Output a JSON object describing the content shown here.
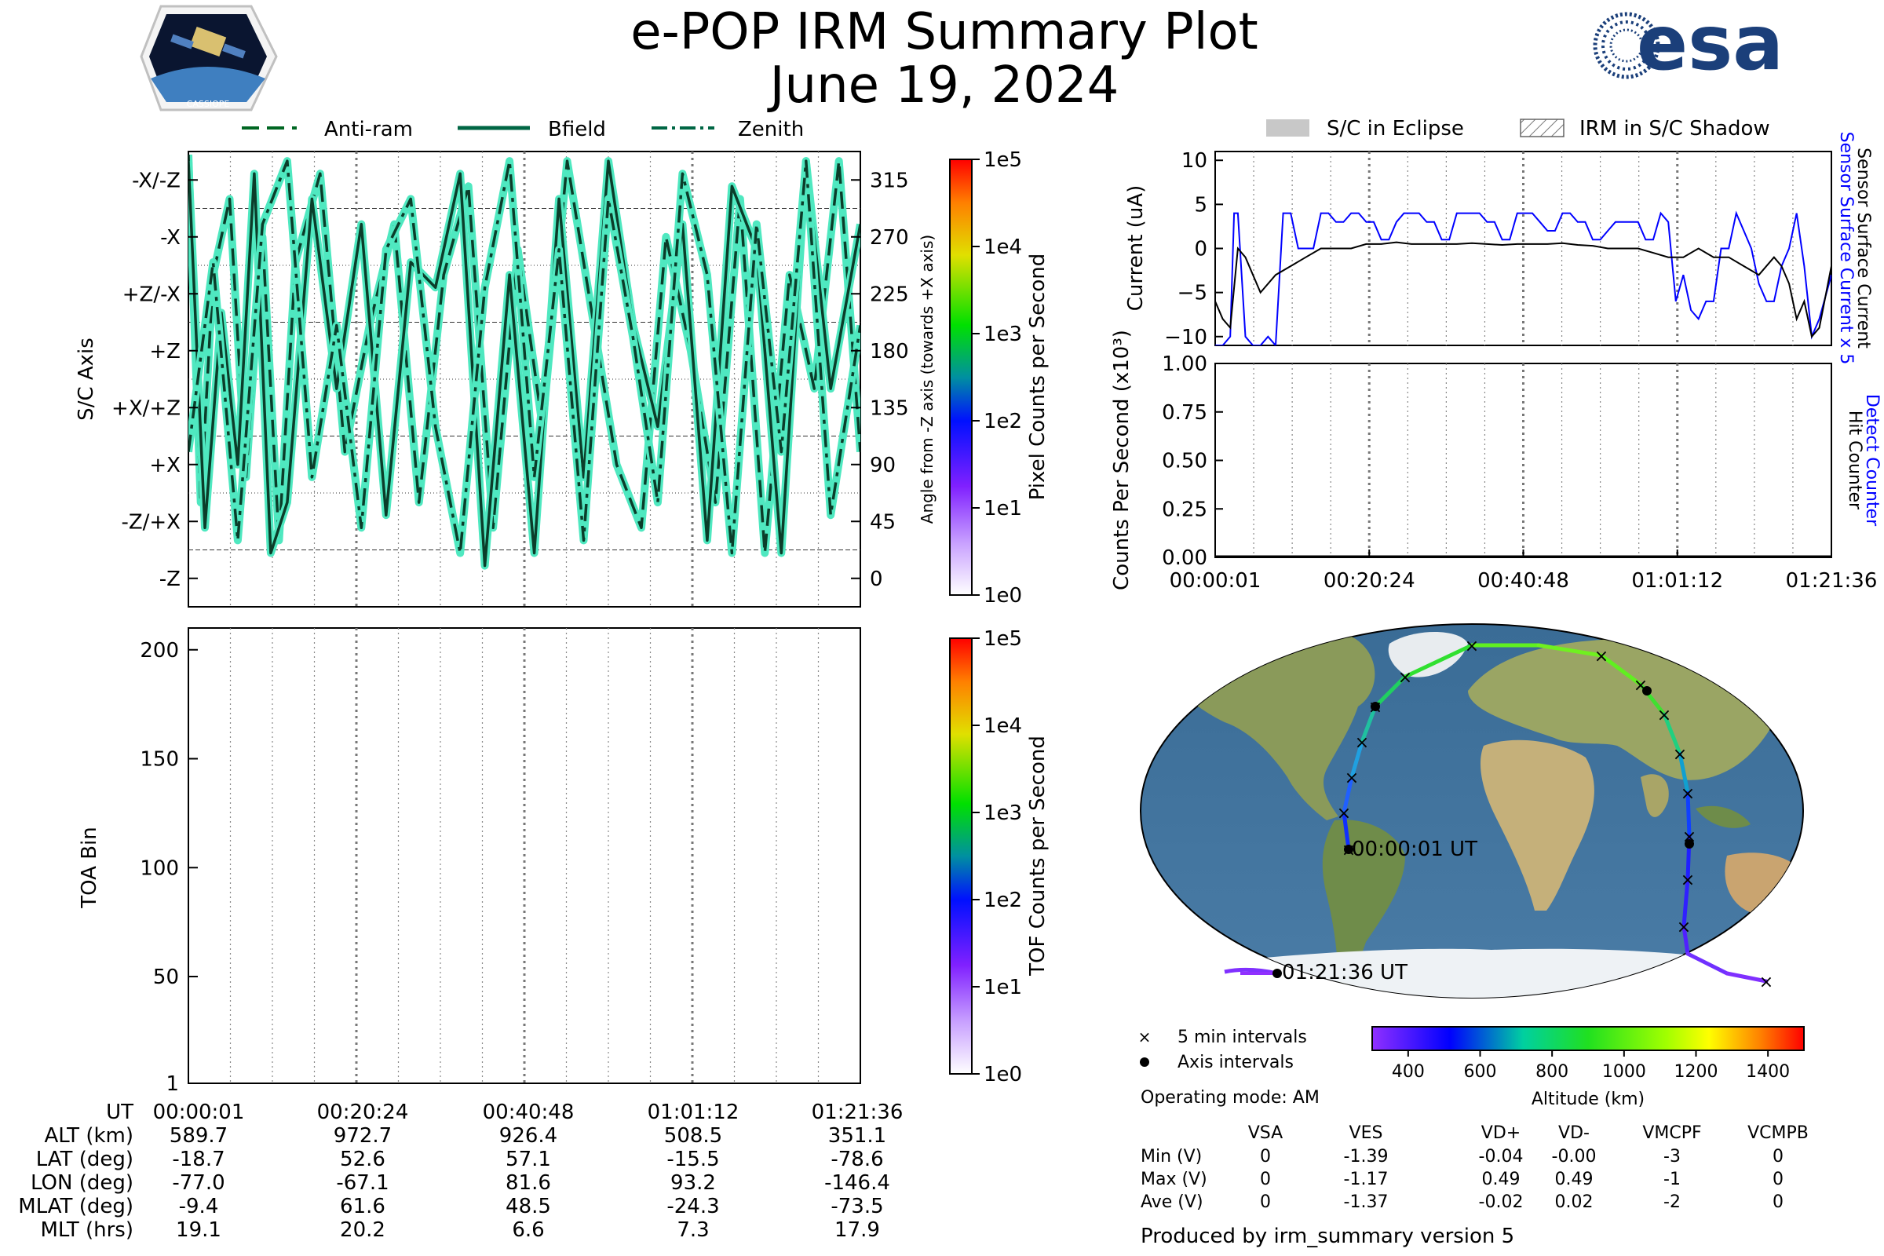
{
  "title": "e-POP IRM Summary Plot",
  "date": "June 19, 2024",
  "logo_left_text": "CASSIOPE",
  "logo_right_text": "esa",
  "legend_top": {
    "antiram": "Anti-ram",
    "bfield": "Bfield",
    "zenith": "Zenith"
  },
  "legend_right": {
    "eclipse": "S/C in Eclipse",
    "shadow": "IRM in S/C Shadow"
  },
  "chart_data": [
    {
      "type": "line",
      "title": "",
      "ylabel": "S/C Axis",
      "ylabel_right": "Angle from -Z axis (towards +X axis)",
      "colorbar_label": "Pixel Counts per Second",
      "colorbar_ticks": [
        "1e0",
        "1e1",
        "1e2",
        "1e3",
        "1e4",
        "1e5"
      ],
      "y_tick_labels": [
        "-Z",
        "-Z/+X",
        "+X",
        "+X/+Z",
        "+Z",
        "+Z/-X",
        "-X",
        "-X/-Z"
      ],
      "y_right_ticks": [
        "0",
        "45",
        "90",
        "135",
        "180",
        "225",
        "270",
        "315"
      ],
      "ylim": [
        -22.5,
        337.5
      ],
      "series": [
        {
          "name": "Anti-ram",
          "style": "dashed",
          "x": [
            0,
            1.5,
            3,
            5,
            7,
            9,
            11,
            13,
            16,
            19,
            22,
            25,
            28,
            31,
            34,
            37,
            40,
            43,
            46,
            49,
            52,
            55,
            58,
            61,
            64,
            67,
            70,
            73,
            76,
            79,
            81.6
          ],
          "values": [
            335,
            60,
            240,
            300,
            80,
            270,
            30,
            250,
            320,
            100,
            200,
            280,
            60,
            240,
            310,
            40,
            260,
            120,
            330,
            210,
            90,
            40,
            270,
            180,
            60,
            300,
            20,
            240,
            150,
            330,
            100
          ]
        },
        {
          "name": "Bfield",
          "style": "solid",
          "x": [
            0,
            2,
            4,
            6,
            8,
            10,
            12,
            15,
            18,
            21,
            24,
            27,
            30,
            33,
            36,
            39,
            42,
            45,
            48,
            51,
            54,
            57,
            60,
            63,
            66,
            69,
            72,
            75,
            78,
            81.6
          ],
          "values": [
            330,
            40,
            210,
            90,
            320,
            20,
            60,
            300,
            150,
            280,
            50,
            250,
            230,
            320,
            10,
            240,
            20,
            300,
            80,
            330,
            200,
            120,
            280,
            30,
            310,
            260,
            20,
            330,
            150,
            280
          ]
        },
        {
          "name": "Zenith",
          "style": "dashdot",
          "x": [
            0,
            3,
            6,
            9,
            12,
            15,
            18,
            21,
            24,
            27,
            30,
            33,
            36,
            39,
            42,
            45,
            48,
            51,
            54,
            57,
            60,
            63,
            66,
            69,
            72,
            75,
            78,
            81.6
          ],
          "values": [
            100,
            250,
            30,
            280,
            330,
            80,
            200,
            40,
            260,
            300,
            120,
            20,
            230,
            330,
            80,
            260,
            30,
            300,
            190,
            60,
            320,
            240,
            20,
            280,
            100,
            330,
            50,
            200
          ]
        }
      ]
    },
    {
      "type": "heatmap",
      "ylabel": "TOA Bin",
      "colorbar_label": "TOF Counts per Second",
      "colorbar_ticks": [
        "1e0",
        "1e1",
        "1e2",
        "1e3",
        "1e4",
        "1e5"
      ],
      "y_ticks": [
        "1",
        "50",
        "100",
        "150",
        "200"
      ],
      "ylim": [
        1,
        210
      ],
      "values": []
    },
    {
      "type": "line",
      "ylabel": "Current (uA)",
      "ylabel_right_1": "Sensor Surface Current x 5",
      "ylabel_right_2": "Sensor Surface Current",
      "y_ticks": [
        "10",
        "5",
        "0",
        "−5",
        "−10"
      ],
      "ylim": [
        -11,
        11
      ],
      "series": [
        {
          "name": "Sensor Surface Current x 5",
          "color": "#0000ff",
          "x": [
            0,
            1,
            2,
            2.5,
            3,
            4,
            5,
            5.5,
            6,
            7,
            8,
            9,
            10,
            11,
            12,
            13,
            14,
            15,
            16,
            17,
            18,
            19,
            20,
            21,
            22,
            23,
            24,
            25,
            26,
            27,
            28,
            29,
            30,
            31,
            32,
            33,
            34,
            35,
            36,
            37,
            38,
            39,
            40,
            41,
            42,
            43,
            44,
            45,
            46,
            47,
            48,
            49,
            50,
            51,
            52,
            53,
            54,
            55,
            56,
            57,
            58,
            59,
            60,
            61,
            62,
            63,
            64,
            65,
            66,
            67,
            68,
            69,
            70,
            71,
            72,
            73,
            74,
            75,
            76,
            77,
            78,
            79,
            80,
            81.6
          ],
          "values": [
            -11,
            -11,
            -10,
            4,
            4,
            -10,
            -11,
            -11,
            -11,
            -10,
            -11,
            4,
            4,
            0,
            0,
            0,
            4,
            4,
            3,
            3,
            4,
            4,
            3,
            3,
            1,
            1,
            3,
            4,
            4,
            4,
            3,
            3,
            1,
            1,
            4,
            4,
            4,
            4,
            3,
            3,
            1,
            1,
            4,
            4,
            4,
            3,
            2,
            2,
            4,
            4,
            3,
            3,
            1,
            1,
            2,
            3,
            3,
            3,
            3,
            1,
            1,
            4,
            3,
            -6,
            -3,
            -7,
            -8,
            -6,
            -6,
            0,
            0,
            4,
            2,
            0,
            -4,
            -6,
            -6,
            -2,
            0,
            4,
            -2,
            -10,
            -8,
            -3
          ]
        },
        {
          "name": "Sensor Surface Current",
          "color": "#000000",
          "x": [
            0,
            1,
            2,
            3,
            4,
            6,
            8,
            10,
            12,
            14,
            16,
            18,
            20,
            22,
            24,
            26,
            28,
            30,
            32,
            34,
            36,
            38,
            40,
            42,
            44,
            46,
            48,
            50,
            52,
            54,
            56,
            58,
            60,
            62,
            64,
            66,
            68,
            70,
            72,
            74,
            75,
            76,
            77,
            78,
            79,
            80,
            81.6
          ],
          "values": [
            -6,
            -8,
            -9,
            0,
            -1,
            -5,
            -3,
            -2,
            -1,
            0,
            0,
            0,
            0.5,
            0.5,
            0.7,
            0.5,
            0.5,
            0.5,
            0.5,
            0.6,
            0.5,
            0.4,
            0.5,
            0.5,
            0.5,
            0.6,
            0.4,
            0.3,
            0,
            0,
            0,
            -0.5,
            -1,
            -1,
            0,
            -1,
            -1,
            -2,
            -3,
            -1,
            -2,
            -4,
            -8,
            -6,
            -10,
            -9,
            -2
          ]
        }
      ]
    },
    {
      "type": "line",
      "ylabel": "Counts Per Second (x10³)",
      "ylabel_right_1": "Detect Counter",
      "ylabel_right_2": "Hit Counter",
      "y_ticks": [
        "1.00",
        "0.75",
        "0.50",
        "0.25",
        "0.00"
      ],
      "x_tick_labels": [
        "00:00:01",
        "00:20:24",
        "00:40:48",
        "01:01:12",
        "01:21:36"
      ],
      "ylim": [
        0,
        1
      ],
      "series": [
        {
          "name": "Detect Counter",
          "color": "#0000ff",
          "x": [
            0,
            81.6
          ],
          "values": [
            0,
            0
          ]
        },
        {
          "name": "Hit Counter",
          "color": "#000000",
          "x": [
            0,
            81.6
          ],
          "values": [
            0,
            0
          ]
        }
      ]
    }
  ],
  "map": {
    "start_label": "00:00:01 UT",
    "end_label": "01:21:36 UT",
    "legend_5min": "5 min intervals",
    "legend_axis": "Axis intervals",
    "colorbar_label": "Altitude (km)",
    "colorbar_ticks": [
      "400",
      "600",
      "800",
      "1000",
      "1200",
      "1400"
    ],
    "operating_mode": "Operating mode: AM"
  },
  "time_table": {
    "headers": [
      "UT",
      "ALT (km)",
      "LAT (deg)",
      "LON (deg)",
      "MLAT (deg)",
      "MLT (hrs)"
    ],
    "columns": [
      [
        "00:00:01",
        "589.7",
        "-18.7",
        "-77.0",
        "-9.4",
        "19.1"
      ],
      [
        "00:20:24",
        "972.7",
        "52.6",
        "-67.1",
        "61.6",
        "20.2"
      ],
      [
        "00:40:48",
        "926.4",
        "57.1",
        "81.6",
        "48.5",
        "6.6"
      ],
      [
        "01:01:12",
        "508.5",
        "-15.5",
        "93.2",
        "-24.3",
        "7.3"
      ],
      [
        "01:21:36",
        "351.1",
        "-78.6",
        "-146.4",
        "-73.5",
        "17.9"
      ]
    ]
  },
  "voltage_table": {
    "headers": [
      "VSA",
      "VES",
      "VD+",
      "VD-",
      "VMCPF",
      "VCMPB"
    ],
    "rows": [
      {
        "label": "Min (V)",
        "values": [
          "0",
          "-1.39",
          "-0.04",
          "-0.00",
          "-3",
          "0"
        ]
      },
      {
        "label": "Max (V)",
        "values": [
          "0",
          "-1.17",
          "0.49",
          "0.49",
          "-1",
          "0"
        ]
      },
      {
        "label": "Ave (V)",
        "values": [
          "0",
          "-1.37",
          "-0.02",
          "0.02",
          "-2",
          "0"
        ]
      }
    ]
  },
  "footer": "Produced by irm_summary version 5"
}
